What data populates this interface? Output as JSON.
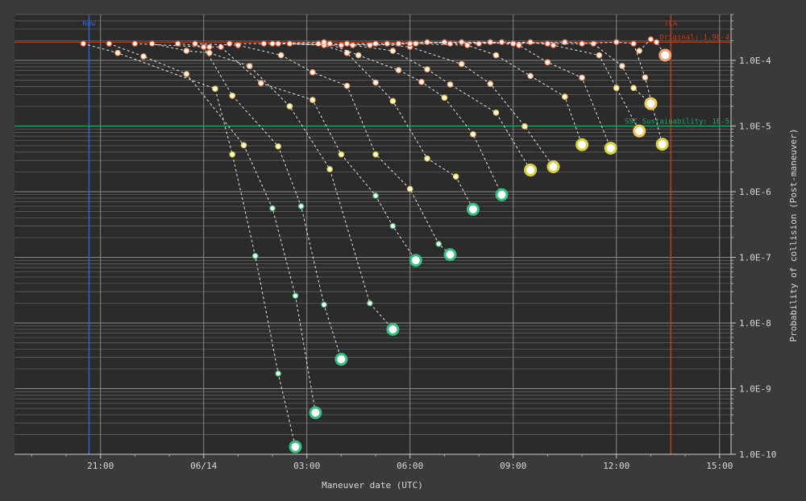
{
  "chart_data": {
    "type": "scatter",
    "xlabel": "Maneuver date (UTC)",
    "ylabel": "Probability of collision (Post-maneuver)",
    "yscale": "log",
    "ylim": [
      1e-10,
      0.0005
    ],
    "xlim": [
      "06/13 18:30",
      "06/14 15:20"
    ],
    "x_ticks": [
      "21:00",
      "06/14",
      "03:00",
      "06:00",
      "09:00",
      "12:00",
      "15:00"
    ],
    "y_ticks": [
      "1.0E-4",
      "1.0E-5",
      "1.0E-6",
      "1.0E-7",
      "1.0E-8",
      "1.0E-9",
      "1.0E-10"
    ],
    "grid": true,
    "reference_lines": [
      {
        "label": "Now",
        "axis": "x",
        "value": "06/13 20:40",
        "color": "#2a66e0"
      },
      {
        "label": "TCA",
        "axis": "x",
        "value": "06/14 13:35",
        "color": "#c0401a"
      },
      {
        "label": "Original: 1.9E-4",
        "axis": "y",
        "value": 0.00019,
        "color": "#c0401a"
      },
      {
        "label": "SSC Sustainability: 1E-5",
        "axis": "y",
        "value": 1e-05,
        "color": "#1fa86a"
      }
    ],
    "series": [
      {
        "points": [
          [
            "06/13 20:30",
            0.00018
          ],
          [
            "06/13 21:30",
            0.00013
          ],
          [
            "06/14 00:20",
            3.7e-05
          ],
          [
            "06/14 00:50",
            3.7e-06
          ],
          [
            "06/14 01:30",
            1.05e-07
          ],
          [
            "06/14 02:10",
            1.7e-09
          ],
          [
            "06/14 02:40",
            1.3e-10
          ]
        ]
      },
      {
        "points": [
          [
            "06/13 21:15",
            0.00018
          ],
          [
            "06/13 22:15",
            0.000115
          ],
          [
            "06/13 23:30",
            6.2e-05
          ],
          [
            "06/14 01:10",
            5.1e-06
          ],
          [
            "06/14 02:00",
            5.6e-07
          ],
          [
            "06/14 02:40",
            2.6e-08
          ],
          [
            "06/14 03:15",
            4.3e-10
          ]
        ]
      },
      {
        "points": [
          [
            "06/13 22:00",
            0.00018
          ],
          [
            "06/14 00:00",
            0.00016
          ],
          [
            "06/14 00:50",
            2.9e-05
          ],
          [
            "06/14 02:10",
            4.9e-06
          ],
          [
            "06/14 02:50",
            6e-07
          ],
          [
            "06/14 03:30",
            1.9e-08
          ],
          [
            "06/14 04:00",
            2.8e-09
          ]
        ]
      },
      {
        "points": [
          [
            "06/13 22:30",
            0.00018
          ],
          [
            "06/13 23:30",
            0.00014
          ],
          [
            "06/14 00:10",
            0.00013
          ],
          [
            "06/14 01:20",
            8.2e-05
          ],
          [
            "06/14 02:30",
            2e-05
          ],
          [
            "06/14 03:40",
            2.2e-06
          ],
          [
            "06/14 04:50",
            2e-08
          ],
          [
            "06/14 05:30",
            8e-09
          ]
        ]
      },
      {
        "points": [
          [
            "06/13 23:15",
            0.00018
          ],
          [
            "06/14 00:10",
            0.00016
          ],
          [
            "06/14 00:30",
            0.00016
          ],
          [
            "06/14 01:40",
            4.5e-05
          ],
          [
            "06/14 03:10",
            2.5e-05
          ],
          [
            "06/14 04:00",
            3.7e-06
          ],
          [
            "06/14 05:00",
            8.7e-07
          ],
          [
            "06/14 05:30",
            3e-07
          ],
          [
            "06/14 06:10",
            9e-08
          ]
        ]
      },
      {
        "points": [
          [
            "06/13 23:45",
            0.00018
          ],
          [
            "06/14 01:00",
            0.00017
          ],
          [
            "06/14 02:15",
            0.00012
          ],
          [
            "06/14 03:10",
            6.6e-05
          ],
          [
            "06/14 04:10",
            4.1e-05
          ],
          [
            "06/14 05:00",
            3.7e-06
          ],
          [
            "06/14 06:00",
            1.1e-06
          ],
          [
            "06/14 06:50",
            1.6e-07
          ],
          [
            "06/14 07:10",
            1.1e-07
          ]
        ]
      },
      {
        "points": [
          [
            "06/14 00:45",
            0.00018
          ],
          [
            "06/14 02:10",
            0.00018
          ],
          [
            "06/14 03:30",
            0.00017
          ],
          [
            "06/14 04:10",
            0.00013
          ],
          [
            "06/14 05:00",
            4.6e-05
          ],
          [
            "06/14 05:30",
            2.4e-05
          ],
          [
            "06/14 06:30",
            3.2e-06
          ],
          [
            "06/14 07:20",
            1.7e-06
          ],
          [
            "06/14 07:50",
            5.4e-07
          ]
        ]
      },
      {
        "points": [
          [
            "06/14 01:45",
            0.00018
          ],
          [
            "06/14 03:30",
            0.00019
          ],
          [
            "06/14 04:30",
            0.00012
          ],
          [
            "06/14 05:40",
            7.1e-05
          ],
          [
            "06/14 06:20",
            4.7e-05
          ],
          [
            "06/14 07:00",
            2.7e-05
          ],
          [
            "06/14 07:50",
            7.5e-06
          ],
          [
            "06/14 08:40",
            9e-07
          ]
        ]
      },
      {
        "points": [
          [
            "06/14 02:00",
            0.00018
          ],
          [
            "06/14 03:20",
            0.00018
          ],
          [
            "06/14 04:20",
            0.00017
          ],
          [
            "06/14 05:30",
            0.00014
          ],
          [
            "06/14 06:30",
            7.3e-05
          ],
          [
            "06/14 07:10",
            4.3e-05
          ],
          [
            "06/14 08:30",
            1.6e-05
          ],
          [
            "06/14 09:30",
            2.14e-06
          ]
        ]
      },
      {
        "points": [
          [
            "06/14 02:30",
            0.00018
          ],
          [
            "06/14 04:00",
            0.00017
          ],
          [
            "06/14 05:00",
            0.00018
          ],
          [
            "06/14 06:00",
            0.00016
          ],
          [
            "06/14 07:30",
            8.8e-05
          ],
          [
            "06/14 08:20",
            4.4e-05
          ],
          [
            "06/14 09:20",
            9.9e-06
          ],
          [
            "06/14 10:10",
            2.4e-06
          ]
        ]
      },
      {
        "points": [
          [
            "06/14 03:40",
            0.00018
          ],
          [
            "06/14 04:50",
            0.00017
          ],
          [
            "06/14 06:10",
            0.00018
          ],
          [
            "06/14 07:40",
            0.00017
          ],
          [
            "06/14 08:30",
            0.00012
          ],
          [
            "06/14 09:30",
            5.8e-05
          ],
          [
            "06/14 10:30",
            2.8e-05
          ],
          [
            "06/14 11:00",
            5.2e-06
          ]
        ]
      },
      {
        "points": [
          [
            "06/14 04:10",
            0.00018
          ],
          [
            "06/14 05:40",
            0.00018
          ],
          [
            "06/14 07:00",
            0.00019
          ],
          [
            "06/14 08:20",
            0.00019
          ],
          [
            "06/14 09:10",
            0.00017
          ],
          [
            "06/14 10:00",
            9.35e-05
          ],
          [
            "06/14 11:00",
            5.45e-05
          ],
          [
            "06/14 11:50",
            4.6e-06
          ]
        ]
      },
      {
        "points": [
          [
            "06/14 05:20",
            0.00018
          ],
          [
            "06/14 06:30",
            0.00019
          ],
          [
            "06/14 08:00",
            0.00018
          ],
          [
            "06/14 09:30",
            0.00019
          ],
          [
            "06/14 10:10",
            0.00017
          ],
          [
            "06/14 11:30",
            0.00012
          ],
          [
            "06/14 12:00",
            3.8e-05
          ],
          [
            "06/14 12:40",
            8.4e-06
          ]
        ]
      },
      {
        "points": [
          [
            "06/14 06:00",
            0.00018
          ],
          [
            "06/14 07:30",
            0.00019
          ],
          [
            "06/14 09:00",
            0.00018
          ],
          [
            "06/14 10:30",
            0.00019
          ],
          [
            "06/14 11:20",
            0.00018
          ],
          [
            "06/14 12:10",
            8.2e-05
          ],
          [
            "06/14 12:30",
            3.8e-05
          ],
          [
            "06/14 13:00",
            2.2e-05
          ]
        ]
      },
      {
        "points": [
          [
            "06/14 07:10",
            0.00018
          ],
          [
            "06/14 08:40",
            0.00019
          ],
          [
            "06/14 10:00",
            0.00018
          ],
          [
            "06/14 11:00",
            0.00018
          ],
          [
            "06/14 12:00",
            0.00019
          ],
          [
            "06/14 12:30",
            0.00018
          ],
          [
            "06/14 12:50",
            5.5e-05
          ],
          [
            "06/14 13:20",
            5.3e-06
          ]
        ]
      },
      {
        "points": [
          [
            "06/14 12:40",
            0.00014
          ],
          [
            "06/14 13:00",
            0.00021
          ],
          [
            "06/14 13:10",
            0.00019
          ],
          [
            "06/14 13:25",
            0.00012
          ]
        ]
      }
    ]
  }
}
